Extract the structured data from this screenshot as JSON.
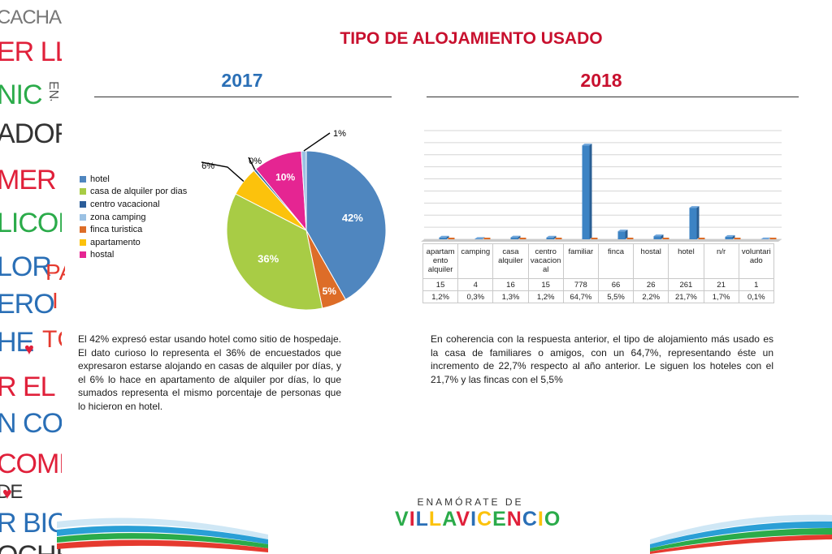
{
  "title": "TIPO DE ALOJAMIENTO USADO",
  "year_left": "2017",
  "year_right": "2018",
  "decor_words": [
    "CACHA",
    "ER LLAN",
    "NIC",
    "ADORE",
    "MER EL F",
    "LICONI",
    "LOR",
    "ERO",
    "HE",
    "R EL PARÇ",
    "N CON",
    "COMER",
    "DE",
    "R BICIC",
    "OCHE"
  ],
  "decor_side": [
    "ENJOS",
    "PA",
    "I",
    "TC"
  ],
  "colors": {
    "title_red": "#c8102e",
    "year_blue": "#2a6fb6",
    "hotel": "#4f86bf",
    "casa": "#a8cc45",
    "centro": "#2b5d99",
    "camping": "#9bc1e3",
    "finca": "#dd6d28",
    "apartamento": "#fcc20c",
    "hostal": "#e52592",
    "bar": "#3c83c4"
  },
  "chart_data": [
    {
      "type": "pie",
      "year": "2017",
      "legend_position": "left",
      "slices": [
        {
          "label": "hotel",
          "value": 42,
          "display": "42%",
          "color": "#4f86bf"
        },
        {
          "label": "casa de alquiler por dias",
          "value": 36,
          "display": "36%",
          "color": "#a8cc45"
        },
        {
          "label": "centro vacacional",
          "value": 0.5,
          "display": "0%",
          "color": "#2b5d99"
        },
        {
          "label": "zona camping",
          "value": 1,
          "display": "1%",
          "color": "#9bc1e3"
        },
        {
          "label": "finca turistica",
          "value": 5,
          "display": "5%",
          "color": "#dd6d28"
        },
        {
          "label": "apartamento",
          "value": 6,
          "display": "6%",
          "color": "#fcc20c"
        },
        {
          "label": "hostal",
          "value": 10,
          "display": "10%",
          "color": "#e52592"
        }
      ],
      "slice_order": [
        "hotel",
        "finca turistica",
        "casa de alquiler por dias",
        "apartamento",
        "centro vacacional",
        "hostal",
        "zona camping"
      ]
    },
    {
      "type": "bar",
      "year": "2018",
      "grid": true,
      "categories": [
        "apartamento alquiler",
        "camping",
        "casa alquiler",
        "centro vacacional",
        "familiar",
        "finca",
        "hostal",
        "hotel",
        "n/r",
        "voluntariado"
      ],
      "category_display": [
        "apartam\nento\nalquiler",
        "camping",
        "casa\nalquiler",
        "centro\nvacacion\nal",
        "familiar",
        "finca",
        "hostal",
        "hotel",
        "n/r",
        "voluntari\nado"
      ],
      "counts": [
        15,
        4,
        16,
        15,
        778,
        66,
        26,
        261,
        21,
        1
      ],
      "percentages": [
        1.2,
        0.3,
        1.3,
        1.2,
        64.7,
        5.5,
        2.2,
        21.7,
        1.7,
        0.1
      ],
      "percent_display": [
        "1,2%",
        "0,3%",
        "1,3%",
        "1,2%",
        "64,7%",
        "5,5%",
        "2,2%",
        "21,7%",
        "1,7%",
        "0,1%"
      ],
      "ylim": [
        0,
        900
      ]
    }
  ],
  "text_left": "El 42% expresó estar usando hotel como sitio de hospedaje. El dato curioso lo representa el 36% de encuestados que expresaron estarse alojando en casas de alquiler por días, y el 6% lo hace en apartamento de alquiler por días, lo que sumados representa el mismo porcentaje de personas que lo hicieron en hotel.",
  "text_right": "En coherencia con la respuesta anterior, el tipo de alojamiento más usado es la casa de familiares o amigos, con un 64,7%, representando éste un incremento de 22,7% respecto al año anterior. Le siguen los hoteles con el 21,7% y las fincas con el 5,5%",
  "brand": {
    "top": "ENAMÓRATE DE",
    "main": "VILLAVICENCIO"
  }
}
